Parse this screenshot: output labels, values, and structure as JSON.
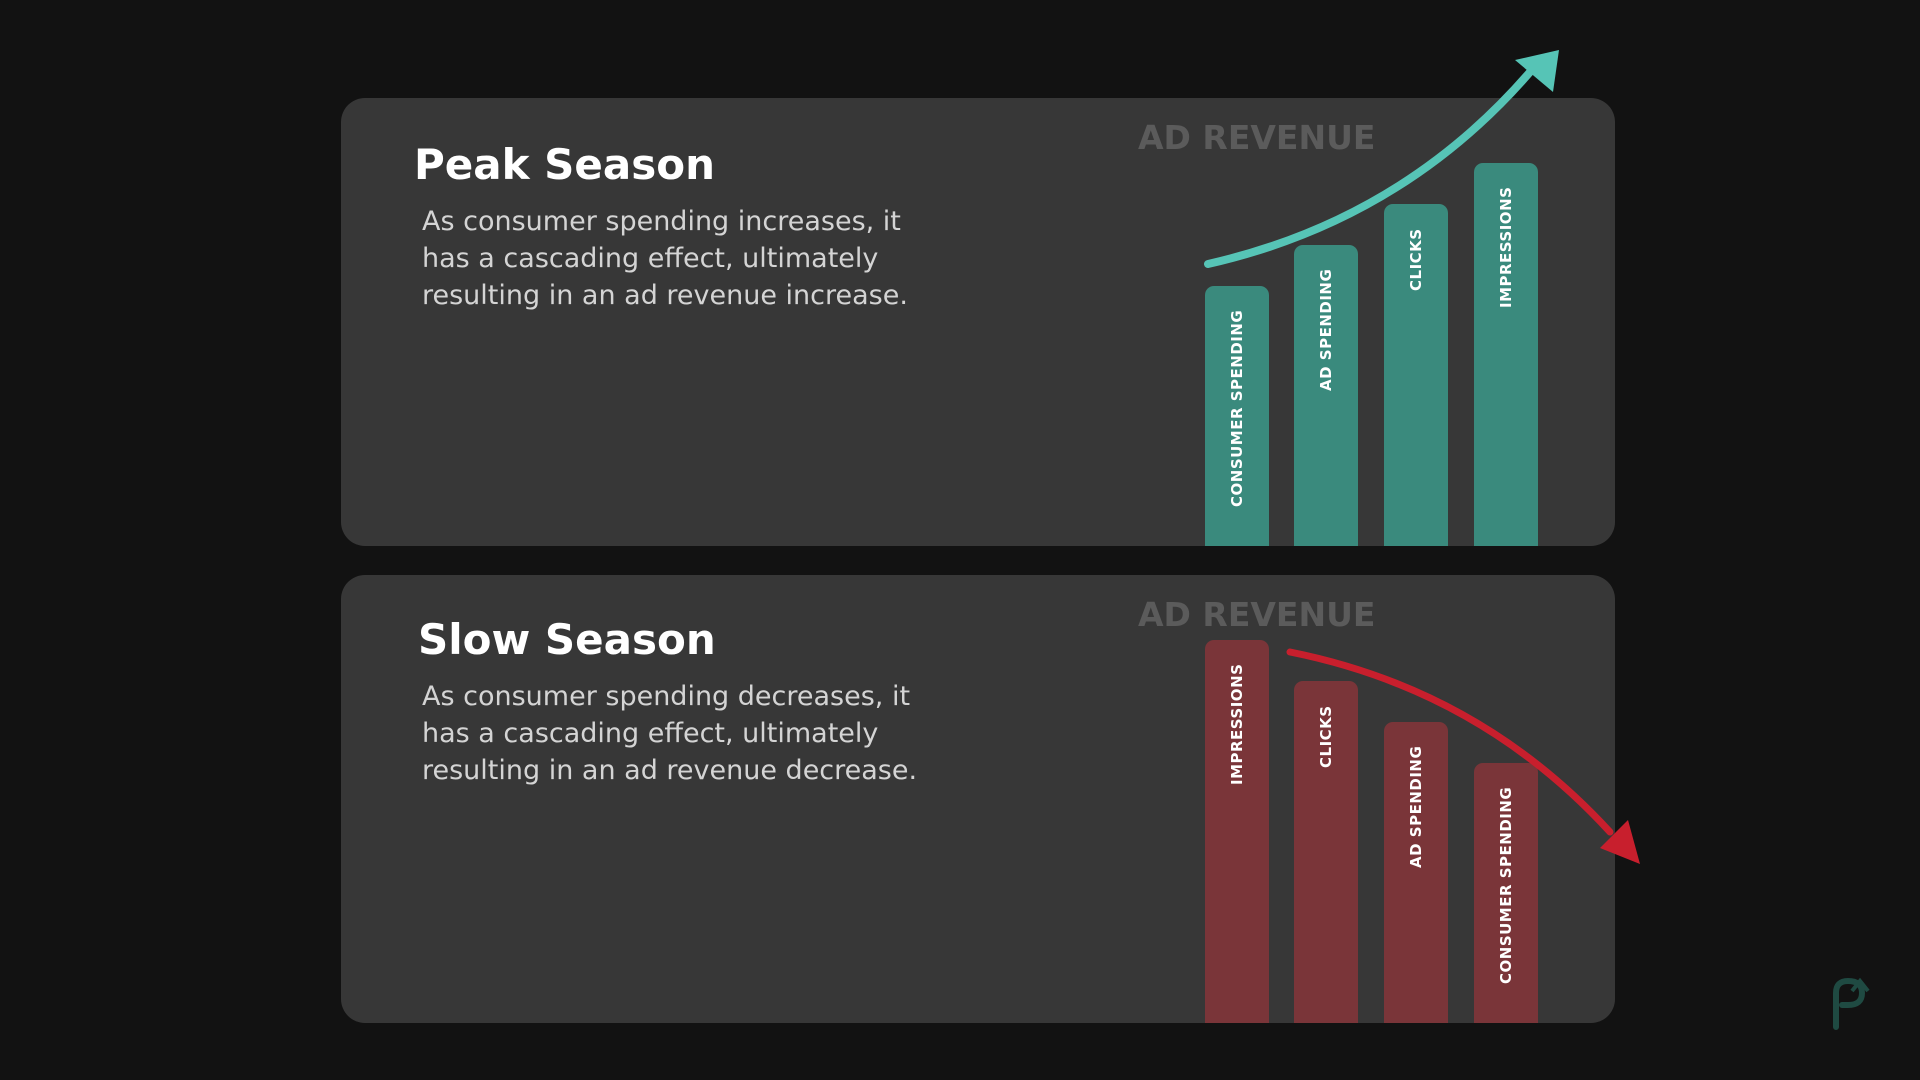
{
  "peak": {
    "title": "Peak Season",
    "description": "As consumer spending increases, it\nhas a cascading effect, ultimately\nresulting in an ad revenue increase.",
    "chart_label": "AD REVENUE",
    "bar_color": "#3a8a7d",
    "arrow_color": "#56c4b6",
    "bars": [
      {
        "label": "CONSUMER SPENDING",
        "value": 1
      },
      {
        "label": "AD SPENDING",
        "value": 2
      },
      {
        "label": "CLICKS",
        "value": 3
      },
      {
        "label": "IMPRESSIONS",
        "value": 4
      }
    ]
  },
  "slow": {
    "title": "Slow Season",
    "description": "As consumer spending decreases, it\nhas a cascading effect, ultimately\nresulting in an ad revenue decrease.",
    "chart_label": "AD REVENUE",
    "bar_color": "#7a3539",
    "arrow_color": "#c81f2d",
    "bars": [
      {
        "label": "IMPRESSIONS",
        "value": 4
      },
      {
        "label": "CLICKS",
        "value": 3
      },
      {
        "label": "AD SPENDING",
        "value": 2
      },
      {
        "label": "CONSUMER SPENDING",
        "value": 1
      }
    ]
  },
  "logo": {
    "icon": "brand-logo-icon",
    "color": "#1f4a42"
  }
}
